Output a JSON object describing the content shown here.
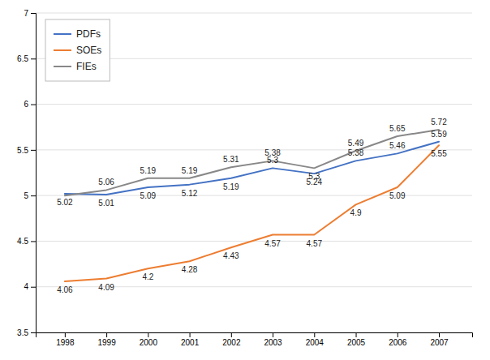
{
  "chart_data": {
    "type": "line",
    "x": [
      1998,
      1999,
      2000,
      2001,
      2002,
      2003,
      2004,
      2005,
      2006,
      2007
    ],
    "xlim": [
      1997.3,
      2007.8
    ],
    "xticks": [
      1998,
      1999,
      2000,
      2001,
      2002,
      2003,
      2004,
      2005,
      2006,
      2007
    ],
    "ylim": [
      3.5,
      7.0
    ],
    "yticks": [
      3.5,
      4,
      4.5,
      5,
      5.5,
      6,
      6.5,
      7
    ],
    "grid": true,
    "legend": "top-left",
    "data_labels": true,
    "series": [
      {
        "name": "PDFs",
        "color": "#4472C4",
        "values": [
          5.02,
          5.01,
          5.09,
          5.12,
          5.19,
          5.3,
          5.24,
          5.38,
          5.46,
          5.59
        ]
      },
      {
        "name": "SOEs",
        "color": "#ED7D31",
        "values": [
          4.06,
          4.09,
          4.2,
          4.28,
          4.43,
          4.57,
          4.57,
          4.9,
          5.09,
          5.55
        ]
      },
      {
        "name": "FIEs",
        "color": "#888888",
        "values": [
          5.0,
          5.06,
          5.19,
          5.19,
          5.31,
          5.38,
          5.3,
          5.49,
          5.65,
          5.72
        ],
        "value_labels": [
          null,
          "5.06",
          "5.19",
          "5.19",
          "5.31",
          "5.38",
          "5.3",
          "5.49",
          "5.65",
          "5.72"
        ]
      }
    ]
  }
}
